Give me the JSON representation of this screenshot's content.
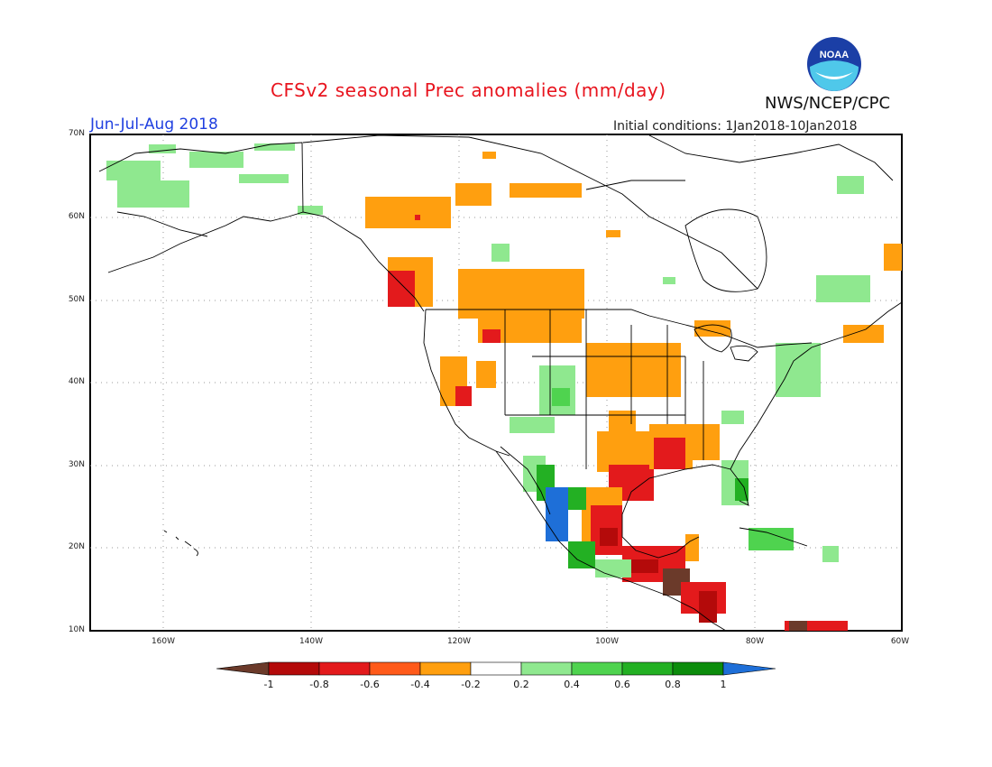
{
  "header": {
    "title": "CFSv2 seasonal Prec anomalies (mm/day)",
    "period": "Jun-Jul-Aug 2018",
    "initial_conditions": "Initial conditions: 1Jan2018-10Jan2018",
    "agency": "NWS/NCEP/CPC",
    "logo_text": "NOAA"
  },
  "axes": {
    "lat_labels": [
      "70N",
      "60N",
      "50N",
      "40N",
      "30N",
      "20N",
      "10N"
    ],
    "lon_labels": [
      "160W",
      "140W",
      "120W",
      "100W",
      "80W",
      "60W"
    ]
  },
  "colorbar": {
    "labels": [
      "-1",
      "-0.8",
      "-0.6",
      "-0.4",
      "-0.2",
      "0.2",
      "0.4",
      "0.6",
      "0.8",
      "1"
    ],
    "colors": [
      "#6b3a2a",
      "#b40a0a",
      "#e31a1c",
      "#ff5a1a",
      "#ff9f0f",
      "#ffffff",
      "#8fe88f",
      "#4fd34f",
      "#23b023",
      "#0c8c0c",
      "#1e6fd8"
    ]
  },
  "map": {
    "region": "North America",
    "lat_range": [
      10,
      70
    ],
    "lon_range": [
      -171,
      -60
    ]
  }
}
